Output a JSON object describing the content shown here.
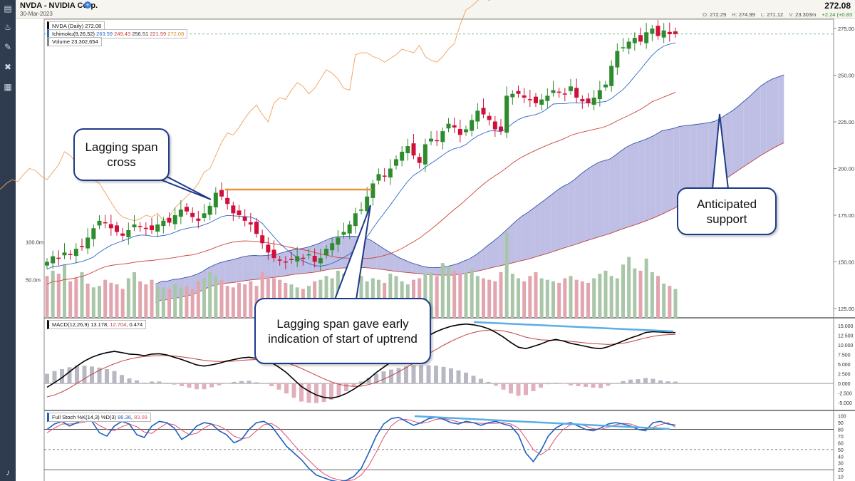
{
  "header": {
    "title": "NVDA - NVIDIA Corp.",
    "date": "30-Mar-2023",
    "last_price": "272.08",
    "ohlc": [
      {
        "label": "O:",
        "value": "272.29"
      },
      {
        "label": "H:",
        "value": "274.99"
      },
      {
        "label": "L:",
        "value": "271.12"
      },
      {
        "label": "V:",
        "value": "23.303m"
      },
      {
        "label": "",
        "value": "+2.24 (+0.83"
      }
    ]
  },
  "toolbar": {
    "icons": [
      "bar-chart-icon",
      "paint-bucket-icon",
      "brush-icon",
      "tools-icon",
      "layout-grid-icon",
      "bell-icon"
    ]
  },
  "legends": {
    "price": {
      "label": "NVDA (Daily) 272.08"
    },
    "ichimoku": {
      "label": "Ichimoku(9,26,52)",
      "values": [
        "263.59",
        "249.43",
        "256.51",
        "221.59",
        "272.08"
      ]
    },
    "volume": {
      "label": "Volume 23,302,654"
    },
    "macd": {
      "label": "MACD(12,26,9)",
      "values": [
        "13.178",
        "12.704",
        "0.474"
      ]
    },
    "stoch": {
      "label": "Full Stoch %K(14,3) %D(3)",
      "values": [
        "86.36",
        "83.09"
      ]
    }
  },
  "callouts": {
    "lagging_cross": "Lagging span cross",
    "early_indication": "Lagging span gave early indication of start of uptrend",
    "support": "Anticipated support"
  },
  "colors": {
    "up_candle": "#2e8b2e",
    "down_candle": "#d0103a",
    "tenkan": "#2f67c4",
    "kijun": "#d0403a",
    "lagging": "#f0a05a",
    "cloud_bull": "#b4b4e0",
    "cloud_bear": "#f6c2c2",
    "macd_line": "#000000",
    "signal_line": "#c04040",
    "trend_line": "#5aaee6",
    "volume_up": "#a9c6a9",
    "volume_down": "#e2a4ae",
    "stoch_k": "#1f5fbf",
    "stoch_d": "#e05070"
  },
  "chart_data": [
    {
      "type": "candlestick",
      "title": "NVDA (Daily)",
      "ylim": [
        120,
        280
      ],
      "yticks": [
        "275.00",
        "250.00",
        "225.00",
        "200.00",
        "175.00",
        "150.00",
        "125.00"
      ],
      "ytick_values": [
        275,
        250,
        225,
        200,
        175,
        150,
        125
      ],
      "current_price": 272.08,
      "closes": [
        150,
        153,
        152,
        155,
        154,
        157,
        158,
        163,
        168,
        172,
        171,
        168,
        166,
        164,
        167,
        170,
        169,
        168,
        167,
        170,
        172,
        171,
        175,
        178,
        177,
        174,
        172,
        176,
        180,
        187,
        185,
        181,
        176,
        175,
        172,
        170,
        165,
        160,
        155,
        152,
        151,
        150,
        151,
        153,
        152,
        154,
        150,
        152,
        157,
        160,
        163,
        166,
        170,
        176,
        178,
        185,
        192,
        197,
        196,
        200,
        205,
        209,
        212,
        207,
        203,
        213,
        216,
        215,
        220,
        224,
        222,
        218,
        221,
        226,
        231,
        229,
        226,
        221,
        220,
        239,
        240,
        240,
        238,
        237,
        235,
        237,
        239,
        242,
        241,
        240,
        244,
        238,
        236,
        235,
        238,
        242,
        245,
        255,
        263,
        265,
        268,
        270,
        268,
        273,
        275,
        271,
        274,
        272,
        272.08
      ],
      "volume": {
        "label": "Volume",
        "tick_labels": [
          "100.0m",
          "50.0m"
        ],
        "tick_values": [
          100,
          50
        ],
        "values": [
          55,
          62,
          58,
          70,
          48,
          52,
          60,
          45,
          40,
          42,
          50,
          46,
          44,
          38,
          52,
          60,
          48,
          44,
          50,
          42,
          40,
          38,
          45,
          40,
          42,
          38,
          48,
          52,
          60,
          55,
          50,
          42,
          40,
          46,
          44,
          48,
          42,
          60,
          55,
          52,
          50,
          46,
          44,
          40,
          38,
          42,
          48,
          50,
          55,
          52,
          62,
          58,
          70,
          60,
          55,
          48,
          52,
          50,
          46,
          58,
          55,
          48,
          44,
          50,
          52,
          58,
          60,
          55,
          72,
          68,
          62,
          58,
          60,
          64,
          55,
          52,
          50,
          48,
          60,
          112,
          58,
          52,
          48,
          55,
          60,
          52,
          50,
          48,
          46,
          52,
          55,
          50,
          48,
          46,
          52,
          58,
          62,
          55,
          52,
          70,
          80,
          65,
          62,
          78,
          60,
          55,
          45,
          42,
          38
        ],
        "direction": [
          "d",
          "u",
          "d",
          "u",
          "d",
          "d",
          "u",
          "d",
          "u",
          "u",
          "d",
          "d",
          "d",
          "d",
          "u",
          "u",
          "d",
          "d",
          "d",
          "u",
          "u",
          "d",
          "u",
          "u",
          "d",
          "d",
          "d",
          "u",
          "u",
          "u",
          "d",
          "d",
          "d",
          "d",
          "d",
          "d",
          "d",
          "d",
          "d",
          "d",
          "d",
          "d",
          "u",
          "u",
          "d",
          "u",
          "d",
          "u",
          "u",
          "u",
          "u",
          "u",
          "u",
          "u",
          "u",
          "u",
          "u",
          "u",
          "d",
          "u",
          "u",
          "u",
          "u",
          "d",
          "d",
          "u",
          "u",
          "d",
          "u",
          "u",
          "d",
          "d",
          "u",
          "u",
          "u",
          "d",
          "d",
          "d",
          "d",
          "u",
          "u",
          "u",
          "d",
          "d",
          "d",
          "u",
          "u",
          "u",
          "d",
          "d",
          "u",
          "d",
          "d",
          "d",
          "u",
          "u",
          "u",
          "u",
          "u",
          "u",
          "u",
          "u",
          "d",
          "u",
          "u",
          "d",
          "u",
          "d",
          "u"
        ]
      }
    },
    {
      "type": "line",
      "title": "MACD(12,26,9)",
      "ylim": [
        -7,
        17
      ],
      "yticks": [
        "15.000",
        "12.500",
        "10.000",
        "7.500",
        "5.000",
        "2.500",
        "0.000",
        "-2.500",
        "-5.000"
      ],
      "ytick_values": [
        15,
        12.5,
        10,
        7.5,
        5,
        2.5,
        0,
        -2.5,
        -5
      ],
      "series": [
        {
          "name": "MACD",
          "values": [
            -1,
            0.2,
            1.5,
            3,
            4.5,
            5.8,
            6.8,
            7.5,
            8,
            8.3,
            8,
            7.6,
            7.5,
            7.2,
            7.6,
            7.7,
            7.4,
            6.8,
            6.2,
            5.5,
            4.8,
            4.5,
            4.8,
            5.2,
            5.8,
            6.2,
            6.6,
            6.8,
            6.5,
            6.2,
            5.4,
            4.2,
            2.8,
            1,
            -0.8,
            -2,
            -3,
            -3.6,
            -3.8,
            -3.4,
            -2.6,
            -1.5,
            -0.2,
            1.2,
            2.8,
            4.2,
            5.6,
            7,
            8.5,
            10,
            11.2,
            12.4,
            13.4,
            14.2,
            14.8,
            15.2,
            15.4,
            15.2,
            14.8,
            14.2,
            13.2,
            12,
            10.6,
            9.4,
            9,
            9.6,
            10.2,
            11,
            11.4,
            11,
            10.4,
            10,
            9.6,
            9.2,
            9,
            9.5,
            10.2,
            11,
            11.8,
            12.4,
            13.2,
            13.4,
            13.3,
            13.2,
            13.178
          ]
        },
        {
          "name": "Signal",
          "values": [
            -3.5,
            -3,
            -2.2,
            -1.2,
            0,
            1.2,
            2.4,
            3.4,
            4.3,
            5.1,
            5.8,
            6.3,
            6.7,
            7,
            7.1,
            7.2,
            7.2,
            7.1,
            6.9,
            6.6,
            6.3,
            6,
            5.8,
            5.7,
            5.7,
            5.8,
            6,
            6.1,
            6.2,
            6.2,
            6.1,
            5.8,
            5.4,
            4.7,
            3.9,
            3,
            2.1,
            1.2,
            0.4,
            -0.2,
            -0.6,
            -0.8,
            -0.7,
            -0.3,
            0.3,
            1.1,
            2,
            3,
            4.1,
            5.3,
            6.5,
            7.7,
            8.8,
            9.9,
            10.9,
            11.8,
            12.6,
            13.2,
            13.6,
            13.8,
            13.8,
            13.6,
            13.2,
            12.6,
            12,
            11.6,
            11.3,
            11.2,
            11.2,
            11.1,
            10.9,
            10.7,
            10.5,
            10.3,
            10.2,
            10.1,
            10.2,
            10.4,
            10.8,
            11.3,
            11.8,
            12.2,
            12.5,
            12.65,
            12.704
          ]
        },
        {
          "name": "Histogram",
          "values": [
            2.5,
            3.2,
            3.7,
            4.2,
            4.5,
            4.6,
            4.4,
            4.1,
            3.7,
            3.2,
            2.2,
            1.3,
            0.8,
            0.2,
            0.5,
            0.5,
            0.2,
            -0.3,
            -0.7,
            -1.1,
            -1.5,
            -1.5,
            -1,
            -0.5,
            0.1,
            0.4,
            0.6,
            0.7,
            0.3,
            0,
            -0.7,
            -1.6,
            -2.6,
            -3.7,
            -4.7,
            -5,
            -5.1,
            -4.8,
            -4.2,
            -3.2,
            -2,
            -0.7,
            0.5,
            1.5,
            2.5,
            3.1,
            3.6,
            4,
            4.4,
            4.7,
            4.7,
            4.7,
            4.6,
            4.3,
            3.9,
            3.4,
            2.8,
            2,
            1.2,
            0.4,
            -0.6,
            -1.6,
            -2.6,
            -3.2,
            -3,
            -2,
            -1.1,
            -0.2,
            0.2,
            -0.1,
            -0.5,
            -0.7,
            -0.9,
            -1.1,
            -1.2,
            -0.6,
            0,
            0.6,
            1,
            1.1,
            1.4,
            1.2,
            0.8,
            0.55,
            0.474
          ]
        }
      ]
    },
    {
      "type": "line",
      "title": "Full Stoch %K(14,3) %D(3)",
      "ylim": [
        0,
        105
      ],
      "yticks": [
        "100",
        "90",
        "80",
        "70",
        "60",
        "50",
        "40",
        "30",
        "20",
        "10"
      ],
      "ytick_values": [
        100,
        90,
        80,
        70,
        60,
        50,
        40,
        30,
        20,
        10
      ],
      "series": [
        {
          "name": "%K",
          "values": [
            80,
            88,
            92,
            85,
            90,
            95,
            92,
            75,
            70,
            85,
            92,
            88,
            72,
            68,
            85,
            92,
            90,
            82,
            65,
            72,
            85,
            90,
            88,
            78,
            72,
            60,
            65,
            80,
            90,
            92,
            85,
            70,
            55,
            45,
            35,
            22,
            12,
            8,
            4,
            2,
            4,
            10,
            22,
            45,
            70,
            88,
            96,
            98,
            92,
            86,
            90,
            96,
            98,
            95,
            90,
            88,
            92,
            90,
            86,
            90,
            92,
            88,
            85,
            72,
            45,
            32,
            48,
            70,
            82,
            88,
            90,
            85,
            80,
            78,
            82,
            88,
            90,
            88,
            85,
            80,
            78,
            90,
            92,
            88,
            86.36
          ]
        },
        {
          "name": "%D",
          "values": [
            75,
            82,
            88,
            88,
            89,
            91,
            93,
            86,
            80,
            78,
            84,
            88,
            84,
            76,
            74,
            82,
            89,
            87,
            79,
            72,
            74,
            82,
            88,
            85,
            79,
            70,
            66,
            68,
            78,
            87,
            89,
            82,
            70,
            57,
            45,
            34,
            23,
            14,
            8,
            5,
            3,
            5,
            12,
            26,
            46,
            68,
            85,
            94,
            95,
            92,
            89,
            91,
            95,
            96,
            94,
            91,
            90,
            90,
            89,
            89,
            89,
            90,
            88,
            82,
            67,
            50,
            42,
            50,
            67,
            80,
            87,
            88,
            85,
            81,
            80,
            83,
            87,
            89,
            88,
            84,
            81,
            83,
            87,
            90,
            83.09
          ]
        }
      ]
    }
  ]
}
